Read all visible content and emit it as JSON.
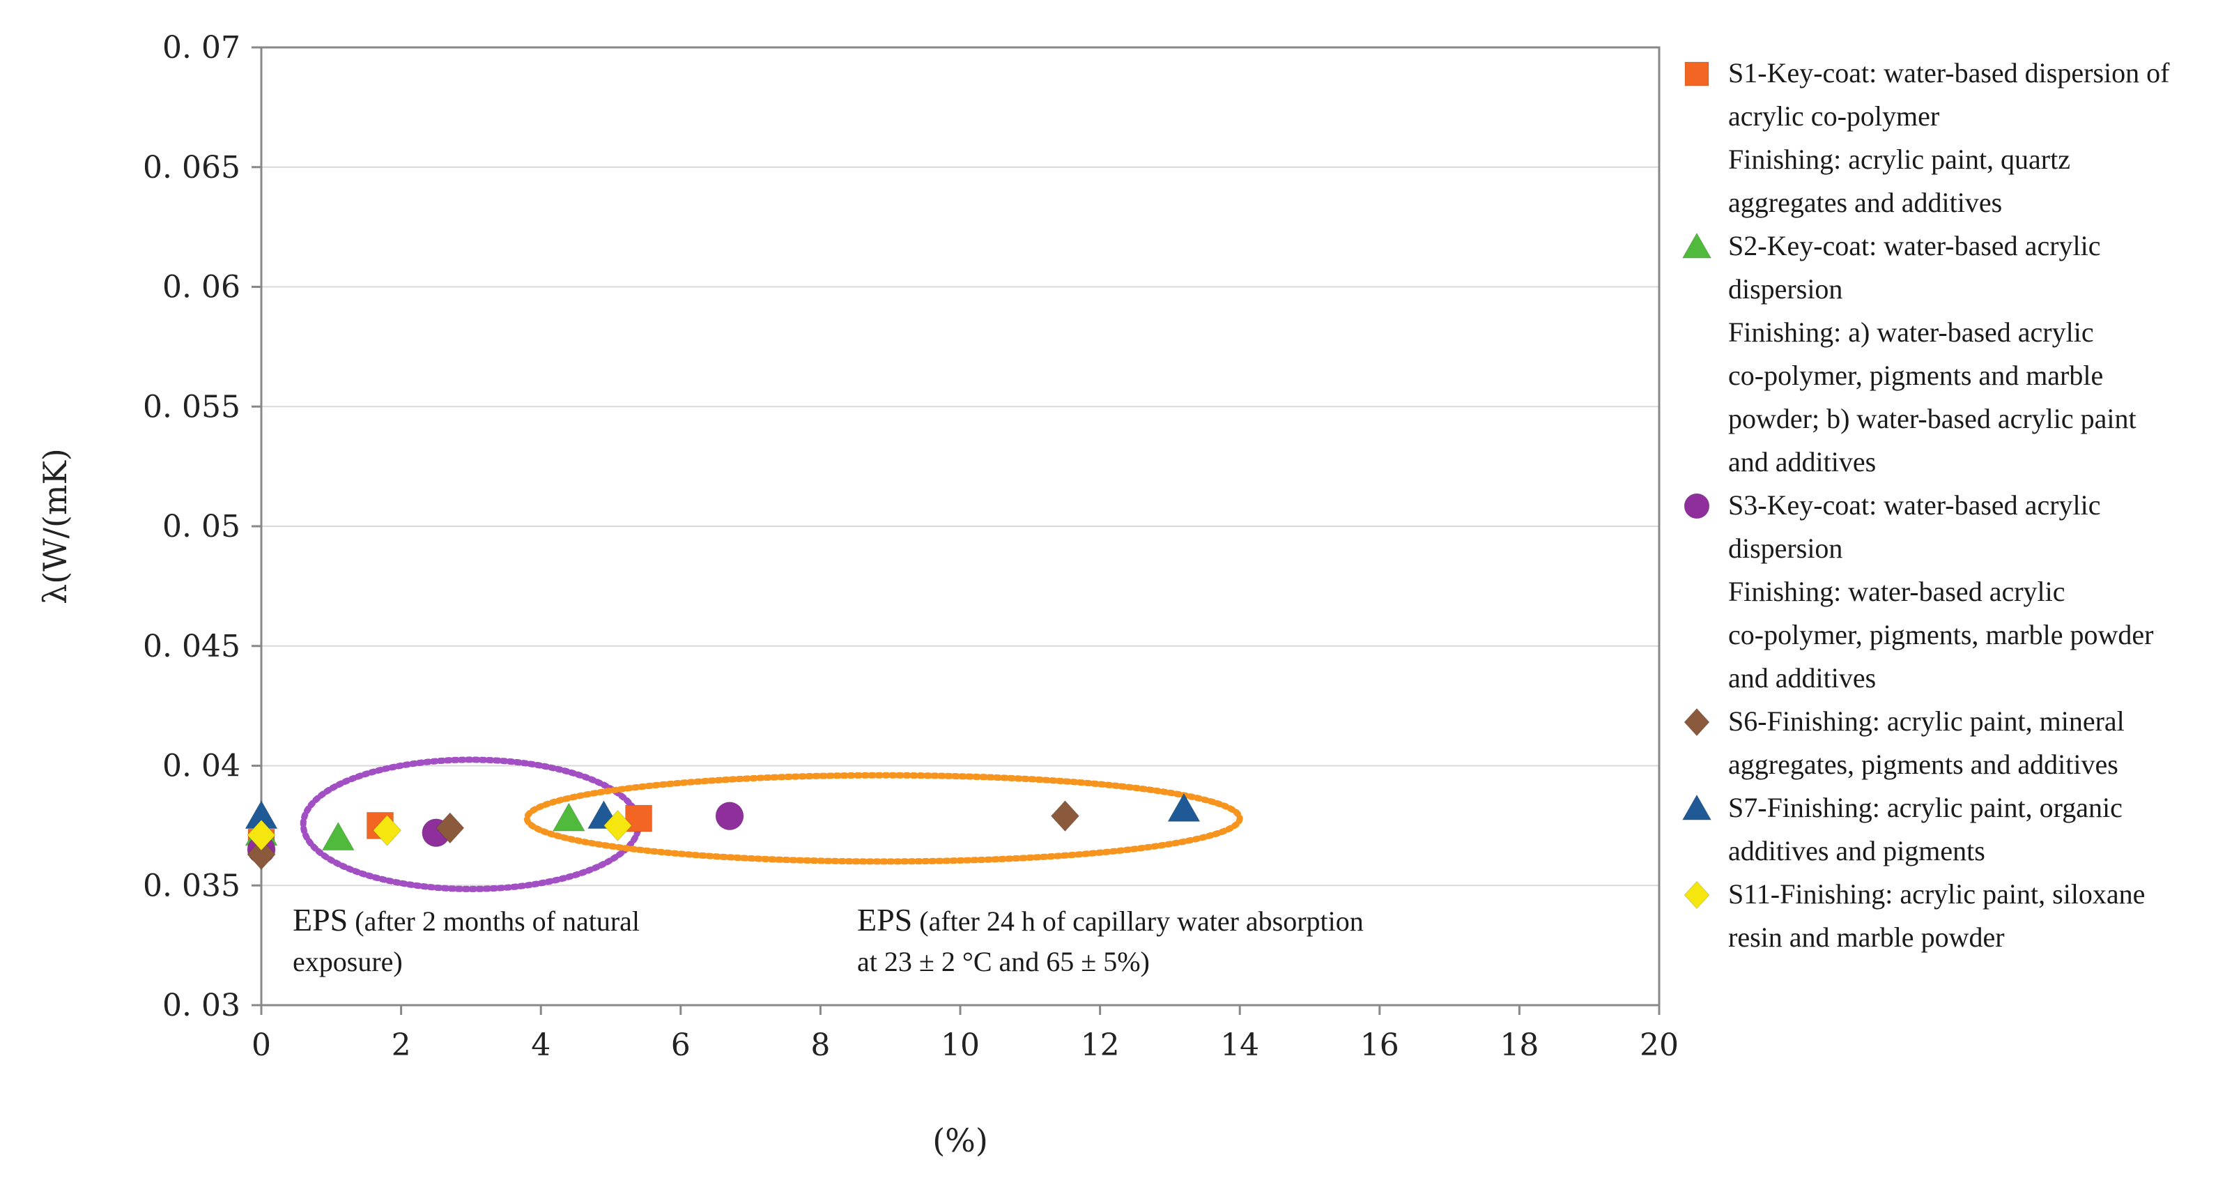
{
  "chart_data": {
    "type": "scatter",
    "title": "",
    "xlabel": "(%)",
    "ylabel": "λ(W/(mK)",
    "xlim": [
      0,
      20
    ],
    "ylim": [
      0.03,
      0.07
    ],
    "x_ticks": [
      "0",
      "2",
      "4",
      "6",
      "8",
      "10",
      "12",
      "14",
      "16",
      "18",
      "20"
    ],
    "y_ticks": [
      "0. 03",
      "0. 035",
      "0. 04",
      "0. 045",
      "0. 05",
      "0. 055",
      "0. 06",
      "0. 065",
      "0. 07"
    ],
    "grid": "horizontal",
    "legend_position": "right",
    "series": [
      {
        "name": "S1",
        "marker": "square",
        "color": "#f26522",
        "points": [
          [
            0,
            0.0368
          ],
          [
            1.7,
            0.0375
          ],
          [
            5.4,
            0.0378
          ]
        ],
        "legend": [
          "S1-Key-coat: water-based dispersion of",
          "acrylic co-polymer",
          "Finishing: acrylic paint, quartz",
          "aggregates and additives"
        ]
      },
      {
        "name": "S2",
        "marker": "triangle",
        "color": "#4fba3c",
        "points": [
          [
            0,
            0.0372
          ],
          [
            1.1,
            0.037
          ],
          [
            4.4,
            0.0378
          ]
        ],
        "legend": [
          "S2-Key-coat: water-based acrylic",
          "dispersion",
          "Finishing: a) water-based acrylic",
          "co-polymer, pigments and marble",
          "powder; b) water-based acrylic paint",
          "and additives"
        ]
      },
      {
        "name": "S3",
        "marker": "circle",
        "color": "#8e2f9c",
        "points": [
          [
            0,
            0.0365
          ],
          [
            2.5,
            0.0372
          ],
          [
            6.7,
            0.0379
          ]
        ],
        "legend": [
          "S3-Key-coat: water-based acrylic",
          "dispersion",
          "Finishing: water-based acrylic",
          "co-polymer, pigments, marble powder",
          "and additives"
        ]
      },
      {
        "name": "S6",
        "marker": "diamond",
        "color": "#8b5a3c",
        "points": [
          [
            0,
            0.0363
          ],
          [
            2.7,
            0.0374
          ],
          [
            11.5,
            0.0379
          ]
        ],
        "legend": [
          "S6-Finishing: acrylic paint, mineral",
          "aggregates, pigments and additives"
        ]
      },
      {
        "name": "S7",
        "marker": "triangle",
        "color": "#1f5a96",
        "points": [
          [
            0,
            0.0379
          ],
          [
            4.9,
            0.0379
          ],
          [
            13.2,
            0.0382
          ]
        ],
        "legend": [
          "S7-Finishing: acrylic paint, organic",
          "additives and pigments"
        ]
      },
      {
        "name": "S11",
        "marker": "diamond",
        "color": "#f5e60f",
        "points": [
          [
            0,
            0.0371
          ],
          [
            1.8,
            0.0373
          ],
          [
            5.1,
            0.0375
          ]
        ],
        "legend": [
          "S11-Finishing: acrylic paint, siloxane",
          "resin and marble powder"
        ]
      }
    ],
    "annotations": [
      {
        "label_big": "EPS",
        "label_rest": " (after 2 months of natural",
        "label_line2": "exposure)",
        "ellipse_color": "#a34fc4",
        "ellipse_center": [
          3,
          0.03755
        ],
        "ellipse_radius": [
          2.4,
          0.0027
        ]
      },
      {
        "label_big": "EPS",
        "label_rest": " (after 24 h of capillary water absorption",
        "label_line2": "at 23 ± 2 °C and 65 ± 5%)",
        "ellipse_color": "#f7941d",
        "ellipse_center": [
          8.9,
          0.0378
        ],
        "ellipse_radius": [
          5.1,
          0.0018
        ]
      }
    ]
  }
}
